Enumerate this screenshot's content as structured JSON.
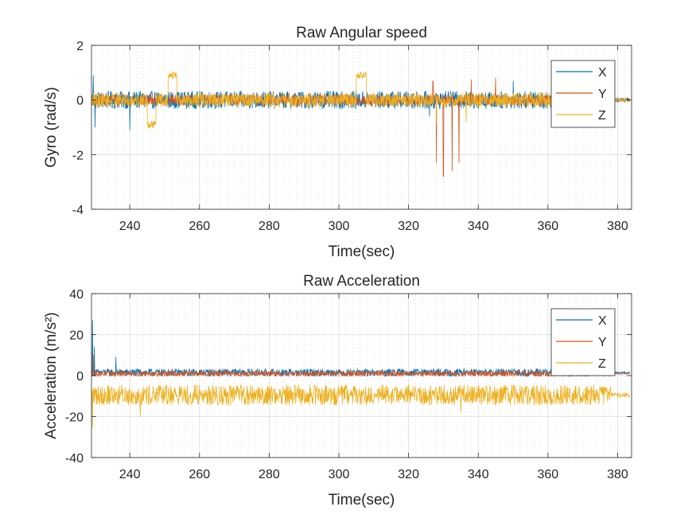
{
  "colors": {
    "X": "#0072BD",
    "Y": "#D95319",
    "Z": "#EDB120",
    "grid": "#DCDCDC",
    "axes": "#262626"
  },
  "chart_data": [
    {
      "type": "line",
      "title": "Raw Angular speed",
      "xlabel": "Time(sec)",
      "ylabel": "Gyro (rad/s)",
      "xlim": [
        229,
        384
      ],
      "ylim": [
        -4,
        2
      ],
      "xticks": [
        240,
        260,
        280,
        300,
        320,
        340,
        360,
        380
      ],
      "yticks": [
        -4,
        -2,
        0,
        2
      ],
      "xtick_labels": [
        "240",
        "260",
        "280",
        "300",
        "320",
        "340",
        "360",
        "380"
      ],
      "ytick_labels": [
        "-4",
        "-2",
        "0",
        "2"
      ],
      "grid": true,
      "minor_x_grid_step": 2,
      "legend_position": "top-right",
      "series": [
        {
          "name": "X",
          "color": "#0072BD",
          "baseline": 0.0,
          "noise": 0.32,
          "events": [
            {
              "t": 229.5,
              "v": 0.9
            },
            {
              "t": 230.0,
              "v": -1.0
            },
            {
              "t": 240.0,
              "v": -1.1
            },
            {
              "t": 326.0,
              "v": -0.6
            },
            {
              "t": 350.0,
              "v": 0.7
            },
            {
              "t": 372.0,
              "v": 0.8
            }
          ]
        },
        {
          "name": "Y",
          "color": "#D95319",
          "baseline": 0.0,
          "noise": 0.2,
          "events": [
            {
              "t": 328.0,
              "v": -2.3
            },
            {
              "t": 330.0,
              "v": -2.8
            },
            {
              "t": 332.5,
              "v": -2.6
            },
            {
              "t": 334.5,
              "v": -2.3
            },
            {
              "t": 327.0,
              "v": 0.7
            },
            {
              "t": 338.0,
              "v": 0.75
            },
            {
              "t": 345.0,
              "v": 0.8
            },
            {
              "t": 370.0,
              "v": 0.7
            }
          ]
        },
        {
          "name": "Z",
          "color": "#EDB120",
          "baseline": 0.0,
          "noise": 0.26,
          "plateaus": [
            {
              "t0": 245.0,
              "t1": 247.5,
              "v": -0.9
            },
            {
              "t0": 251.0,
              "t1": 253.5,
              "v": 0.9
            },
            {
              "t0": 305.0,
              "t1": 308.0,
              "v": 0.9
            }
          ],
          "events": [
            {
              "t": 328.0,
              "v": -0.9
            },
            {
              "t": 336.5,
              "v": -0.8
            }
          ]
        }
      ],
      "t_end": 383.5
    },
    {
      "type": "line",
      "title": "Raw Acceleration",
      "xlabel": "Time(sec)",
      "ylabel": "Acceleration (m/s²)",
      "xlim": [
        229,
        384
      ],
      "ylim": [
        -40,
        40
      ],
      "xticks": [
        240,
        260,
        280,
        300,
        320,
        340,
        360,
        380
      ],
      "yticks": [
        -40,
        -20,
        0,
        20,
        40
      ],
      "xtick_labels": [
        "240",
        "260",
        "280",
        "300",
        "320",
        "340",
        "360",
        "380"
      ],
      "ytick_labels": [
        "-40",
        "-20",
        "0",
        "20",
        "40"
      ],
      "grid": true,
      "minor_x_grid_step": 2,
      "legend_position": "top-right",
      "series": [
        {
          "name": "X",
          "color": "#0072BD",
          "baseline": 1.5,
          "noise": 1.8,
          "events": [
            {
              "t": 229.3,
              "v": 27.0
            },
            {
              "t": 229.8,
              "v": 14.0
            },
            {
              "t": 236.0,
              "v": 9.0
            }
          ]
        },
        {
          "name": "Y",
          "color": "#D95319",
          "baseline": 1.0,
          "noise": 1.4,
          "events": [
            {
              "t": 229.5,
              "v": 10.0
            }
          ]
        },
        {
          "name": "Z",
          "color": "#EDB120",
          "baseline": -9.5,
          "noise": 5.0,
          "events": [
            {
              "t": 229.3,
              "v": -25.0
            },
            {
              "t": 243.0,
              "v": -20.0
            },
            {
              "t": 335.0,
              "v": -18.0
            }
          ]
        }
      ],
      "t_end": 383.5
    }
  ]
}
